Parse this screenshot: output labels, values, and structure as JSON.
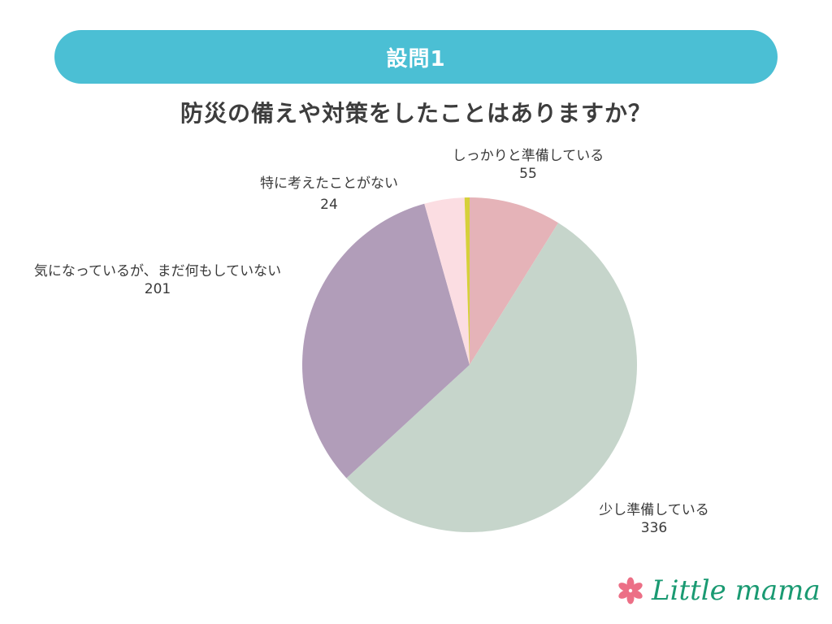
{
  "header": {
    "banner_label": "設問1",
    "banner_color": "#4bbfd4",
    "question": "防災の備えや対策をしたことはありますか？"
  },
  "chart_data": {
    "type": "pie",
    "title": "防災の備えや対策をしたことはありますか？",
    "start_angle": "12 o'clock, clockwise",
    "slices": [
      {
        "label": "しっかりと準備している",
        "value": 55,
        "color": "#e5b3b8"
      },
      {
        "label": "少し準備している",
        "value": 336,
        "color": "#c6d5cb"
      },
      {
        "label": "気になっているが、まだ何もしていない",
        "value": 201,
        "color": "#b19db9"
      },
      {
        "label": "特に考えたことがない",
        "value": 24,
        "color": "#fbdde2"
      },
      {
        "label": "",
        "value": 3,
        "color": "#d6d03a"
      }
    ],
    "legend": "none (direct labels)"
  },
  "labels": [
    {
      "text": "しっかりと準備している",
      "value": "55"
    },
    {
      "text": "少し準備している",
      "value": "336"
    },
    {
      "text": "気になっているが、まだ何もしていない",
      "value": "201"
    },
    {
      "text": "特に考えたことがない",
      "value": "24"
    }
  ],
  "logo": {
    "text": "Little mama",
    "text_color": "#1a9a72",
    "flower_color": "#ec6f86"
  }
}
